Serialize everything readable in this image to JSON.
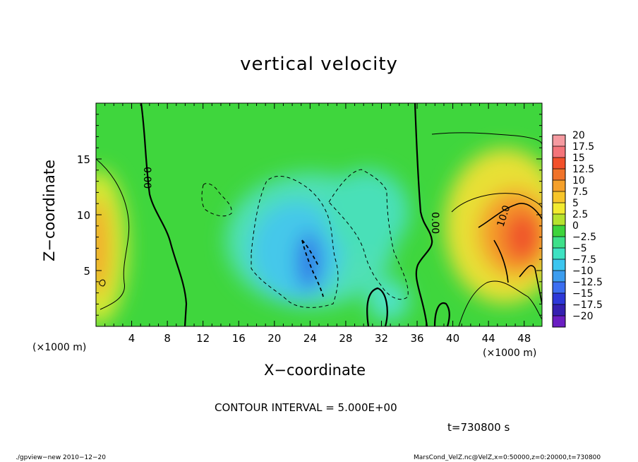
{
  "chart_data": {
    "type": "heatmap",
    "title": "vertical velocity",
    "xlabel": "X−coordinate",
    "ylabel": "Z−coordinate",
    "x_unit_label": "(×1000 m)",
    "xlim": [
      0,
      50
    ],
    "ylim": [
      0,
      20
    ],
    "x_ticks": [
      4,
      8,
      12,
      16,
      20,
      24,
      28,
      32,
      36,
      40,
      44,
      48
    ],
    "y_ticks": [
      5,
      10,
      15
    ],
    "colorbar": {
      "levels": [
        "20",
        "17.5",
        "15",
        "12.5",
        "10",
        "7.5",
        "5",
        "2.5",
        "0",
        "−2.5",
        "−5",
        "−7.5",
        "−10",
        "−12.5",
        "−15",
        "−17.5",
        "−20"
      ],
      "colors": [
        "#f59aa0",
        "#f4747a",
        "#f2502a",
        "#f0732a",
        "#f5a02a",
        "#f7c52a",
        "#f2ea30",
        "#b6e22e",
        "#3ed43c",
        "#3ee08a",
        "#3ee2c2",
        "#3cc6ef",
        "#3c9def",
        "#3c6ef0",
        "#2d38d8",
        "#3520b0",
        "#6a1ec2"
      ]
    },
    "contour_interval_label": "CONTOUR INTERVAL = 5.000E+00",
    "contour_labels": [
      "0.00",
      "0.00",
      "10.0"
    ],
    "field_features": [
      {
        "x": 23.5,
        "z": 6.5,
        "value": -11,
        "label": "downdraft core"
      },
      {
        "x": 47,
        "z": 8,
        "value": 12.5,
        "label": "updraft core right"
      },
      {
        "x": 0.5,
        "z": 8,
        "value": 9,
        "label": "updraft left edge"
      },
      {
        "x": 30,
        "z": 9,
        "value": -4,
        "label": "weak downdraft"
      }
    ]
  },
  "annotations": {
    "time": "t=730800 s",
    "footer_left": "./gpview−new   2010−12−20",
    "footer_right": "MarsCond_VelZ.nc@VelZ,x=0:50000,z=0:20000,t=730800"
  }
}
